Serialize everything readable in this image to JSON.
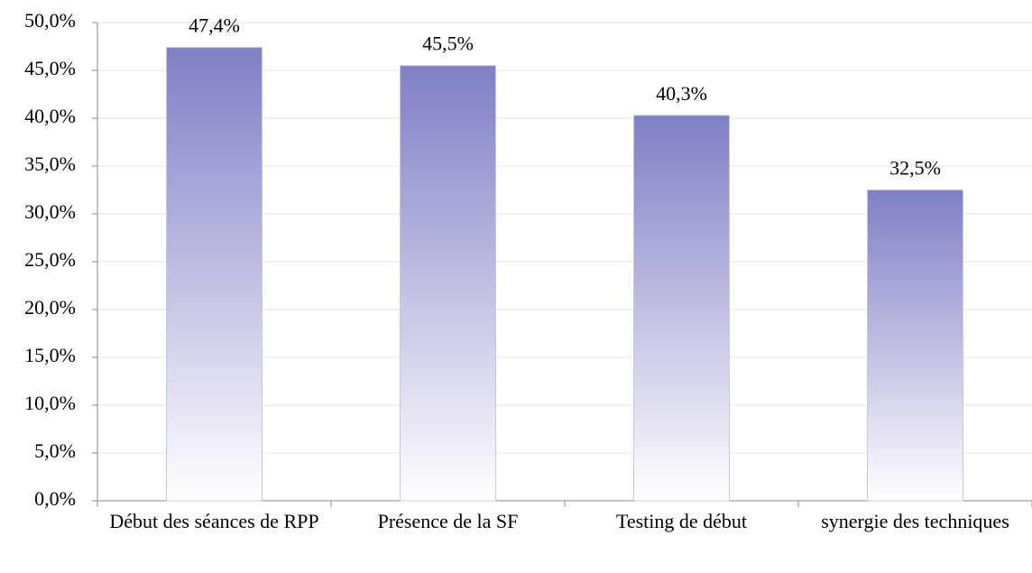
{
  "chart_data": {
    "type": "bar",
    "categories": [
      "Début des séances de RPP",
      "Présence de la SF",
      "Testing de début",
      "synergie des techniques"
    ],
    "values": [
      47.4,
      45.5,
      40.3,
      32.5
    ],
    "value_labels": [
      "47,4%",
      "45,5%",
      "40,3%",
      "32,5%"
    ],
    "color": "#7f7fc6",
    "ylim": [
      0,
      50
    ],
    "yticks": [
      {
        "value": 0,
        "label": "0,0%"
      },
      {
        "value": 5,
        "label": "5,0%"
      },
      {
        "value": 10,
        "label": "10,0%"
      },
      {
        "value": 15,
        "label": "15,0%"
      },
      {
        "value": 20,
        "label": "20,0%"
      },
      {
        "value": 25,
        "label": "25,0%"
      },
      {
        "value": 30,
        "label": "30,0%"
      },
      {
        "value": 35,
        "label": "35,0%"
      },
      {
        "value": 40,
        "label": "40,0%"
      },
      {
        "value": 45,
        "label": "45,0%"
      },
      {
        "value": 50,
        "label": "50,0%"
      }
    ],
    "grid": true
  }
}
